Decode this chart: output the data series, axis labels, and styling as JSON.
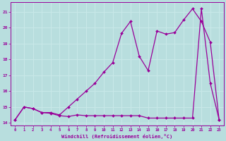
{
  "xlabel": "Windchill (Refroidissement éolien,°C)",
  "bg_color": "#b8dede",
  "grid_color": "#c8e8e8",
  "line_color": "#990099",
  "x": [
    0,
    1,
    2,
    3,
    4,
    5,
    6,
    7,
    8,
    9,
    10,
    11,
    12,
    13,
    14,
    15,
    16,
    17,
    18,
    19,
    20,
    21,
    22,
    23
  ],
  "line1_y": [
    14.2,
    15.0,
    14.9,
    14.65,
    14.65,
    14.5,
    15.0,
    15.5,
    16.0,
    16.5,
    17.2,
    17.8,
    19.65,
    20.4,
    18.2,
    17.3,
    19.8,
    19.6,
    19.7,
    20.5,
    21.2,
    20.4,
    19.1,
    14.2
  ],
  "line2_y": [
    14.2,
    15.0,
    14.9,
    14.65,
    14.6,
    14.45,
    14.4,
    14.5,
    14.45,
    14.45,
    14.45,
    14.45,
    14.45,
    14.45,
    14.45,
    14.3,
    14.3,
    14.3,
    14.3,
    14.3,
    14.3,
    21.2,
    16.5,
    14.2
  ],
  "ylim": [
    13.85,
    21.6
  ],
  "yticks": [
    14,
    15,
    16,
    17,
    18,
    19,
    20,
    21
  ],
  "xlim": [
    -0.5,
    23.5
  ],
  "figwidth": 3.2,
  "figheight": 2.0,
  "dpi": 100
}
